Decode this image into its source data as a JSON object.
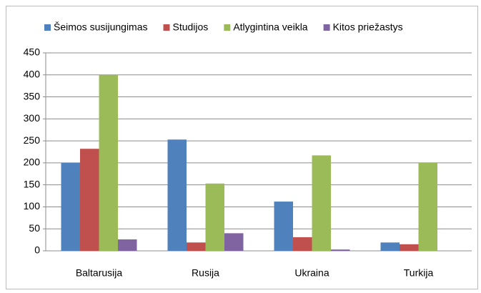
{
  "chart_data": {
    "type": "bar",
    "categories": [
      "Baltarusija",
      "Rusija",
      "Ukraina",
      "Turkija"
    ],
    "series": [
      {
        "name": "Šeimos susijungimas",
        "color": "#4f81bd",
        "values": [
          200,
          253,
          112,
          19
        ]
      },
      {
        "name": "Studijos",
        "color": "#c0504d",
        "values": [
          232,
          19,
          31,
          15
        ]
      },
      {
        "name": "Atlygintina veikla",
        "color": "#9bbb59",
        "values": [
          400,
          153,
          217,
          200
        ]
      },
      {
        "name": "Kitos priežastys",
        "color": "#8064a2",
        "values": [
          26,
          40,
          3,
          0
        ]
      }
    ],
    "ylim": [
      0,
      450
    ],
    "yticks": [
      0,
      50,
      100,
      150,
      200,
      250,
      300,
      350,
      400,
      450
    ],
    "grid": true,
    "legend": "top"
  }
}
